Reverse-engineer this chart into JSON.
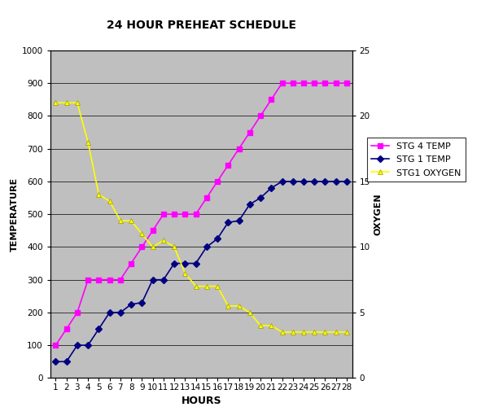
{
  "title": "24 HOUR PREHEAT SCHEDULE",
  "xlabel": "HOURS",
  "ylabel_left": "TEMPERATURE",
  "ylabel_right": "OXYGEN",
  "hours": [
    1,
    2,
    3,
    4,
    5,
    6,
    7,
    8,
    9,
    10,
    11,
    12,
    13,
    14,
    15,
    16,
    17,
    18,
    19,
    20,
    21,
    22,
    23,
    24,
    25,
    26,
    27,
    28
  ],
  "stg4_temp": [
    100,
    150,
    200,
    300,
    300,
    300,
    300,
    350,
    400,
    450,
    500,
    500,
    500,
    500,
    550,
    600,
    650,
    700,
    750,
    800,
    850,
    900,
    900,
    900,
    900,
    900,
    900,
    900
  ],
  "stg1_temp": [
    50,
    50,
    100,
    100,
    150,
    200,
    200,
    225,
    230,
    300,
    300,
    350,
    350,
    350,
    400,
    425,
    475,
    480,
    530,
    550,
    580,
    600,
    600,
    600,
    600,
    600,
    600,
    600
  ],
  "stg1_oxygen": [
    21.0,
    21.0,
    21.0,
    18.0,
    14.0,
    13.5,
    12.0,
    12.0,
    11.0,
    10.0,
    10.5,
    10.0,
    8.0,
    7.0,
    7.0,
    7.0,
    5.5,
    5.5,
    5.0,
    4.0,
    4.0,
    3.5,
    3.5,
    3.5,
    3.5,
    3.5,
    3.5,
    3.5
  ],
  "stg4_color": "#FF00FF",
  "stg1_color": "#000080",
  "oxygen_color": "#FFFF00",
  "ylim_left": [
    0,
    1000
  ],
  "ylim_right": [
    0.0,
    25.0
  ],
  "xlim": [
    0.5,
    28.5
  ],
  "plot_bg": "#BFBFBF",
  "fig_bg": "#FFFFFF",
  "yticks_left": [
    0,
    100,
    200,
    300,
    400,
    500,
    600,
    700,
    800,
    900,
    1000
  ],
  "yticks_right": [
    0.0,
    5.0,
    10.0,
    15.0,
    20.0,
    25.0
  ]
}
